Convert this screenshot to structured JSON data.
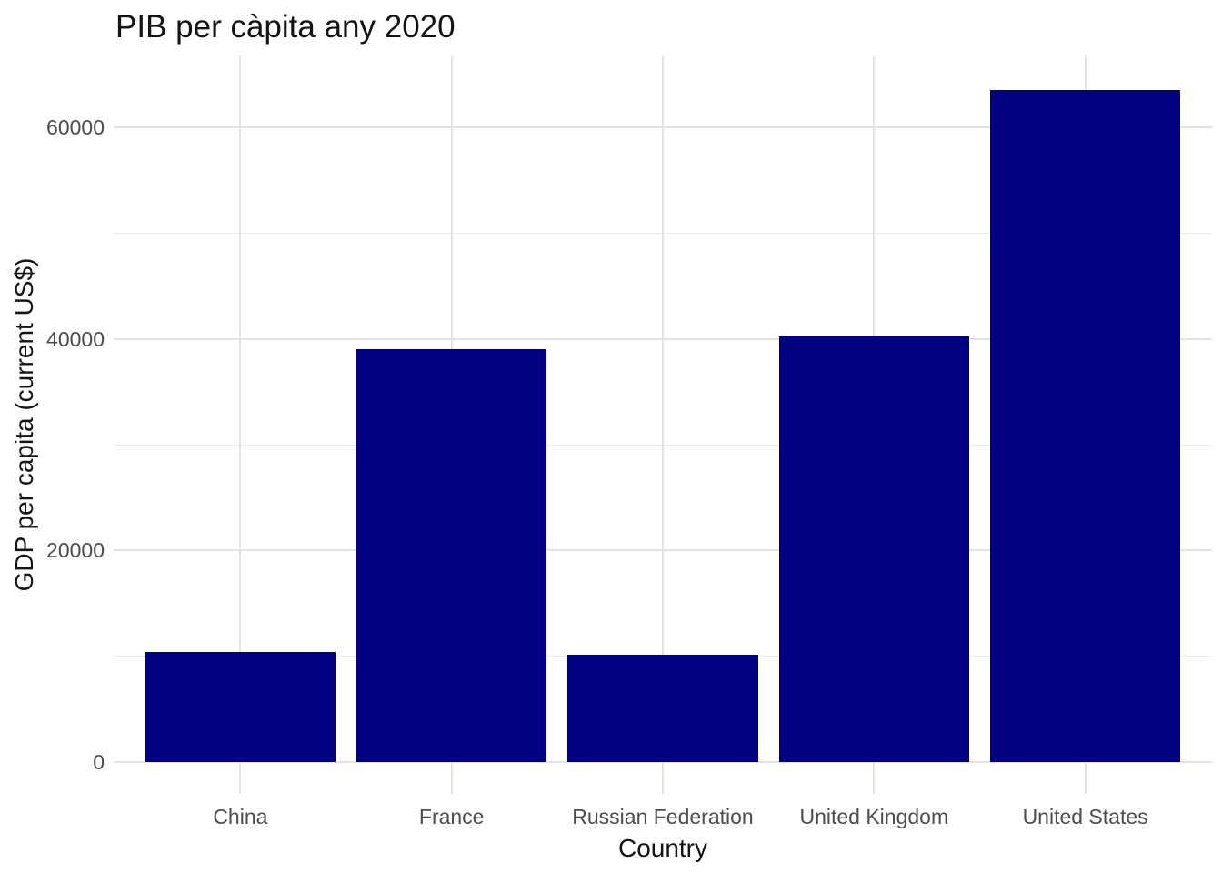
{
  "chart_data": {
    "type": "bar",
    "title": "PIB per càpita any 2020",
    "xlabel": "Country",
    "ylabel": "GDP per capita (current US$)",
    "categories": [
      "China",
      "France",
      "Russian Federation",
      "United Kingdom",
      "United States"
    ],
    "values": [
      10409,
      39037,
      10169,
      40285,
      63530
    ],
    "y_major_ticks": [
      0,
      20000,
      40000,
      60000
    ],
    "y_tick_labels": [
      "0",
      "20000",
      "40000",
      "60000"
    ],
    "y_minor_gridlines": [
      10000,
      30000,
      50000
    ],
    "ylim": [
      0,
      66700
    ],
    "bar_relative_width": 0.9,
    "legend": "none",
    "grid": "horizontal major+minor, vertical major at category centers",
    "colors": {
      "bar_fill": "#000080",
      "grid_major": "#e3e3e3",
      "grid_minor": "#ececec",
      "tick_label": "#4d4d4d",
      "axis_title": "#141414",
      "title": "#141414",
      "background": "#ffffff"
    }
  }
}
